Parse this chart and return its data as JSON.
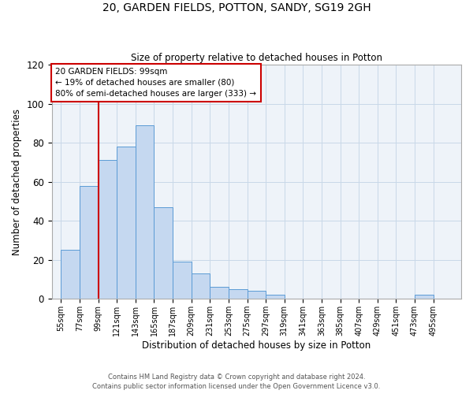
{
  "title_line1": "20, GARDEN FIELDS, POTTON, SANDY, SG19 2GH",
  "title_line2": "Size of property relative to detached houses in Potton",
  "xlabel": "Distribution of detached houses by size in Potton",
  "ylabel": "Number of detached properties",
  "bin_labels": [
    "55sqm",
    "77sqm",
    "99sqm",
    "121sqm",
    "143sqm",
    "165sqm",
    "187sqm",
    "209sqm",
    "231sqm",
    "253sqm",
    "275sqm",
    "297sqm",
    "319sqm",
    "341sqm",
    "363sqm",
    "385sqm",
    "407sqm",
    "429sqm",
    "451sqm",
    "473sqm",
    "495sqm"
  ],
  "bin_edges": [
    55,
    77,
    99,
    121,
    143,
    165,
    187,
    209,
    231,
    253,
    275,
    297,
    319,
    341,
    363,
    385,
    407,
    429,
    451,
    473,
    495
  ],
  "bar_heights": [
    25,
    58,
    71,
    78,
    89,
    47,
    19,
    13,
    6,
    5,
    4,
    2,
    0,
    0,
    0,
    0,
    0,
    0,
    0,
    2,
    0
  ],
  "bar_color": "#c5d8f0",
  "bar_edge_color": "#5b9bd5",
  "grid_color": "#c8d8e8",
  "background_color": "#eef3f9",
  "vline_x": 99,
  "vline_color": "#cc0000",
  "annotation_text_line1": "20 GARDEN FIELDS: 99sqm",
  "annotation_text_line2": "← 19% of detached houses are smaller (80)",
  "annotation_text_line3": "80% of semi-detached houses are larger (333) →",
  "annotation_box_color": "#cc0000",
  "ylim": [
    0,
    120
  ],
  "yticks": [
    0,
    20,
    40,
    60,
    80,
    100,
    120
  ],
  "footnote_line1": "Contains HM Land Registry data © Crown copyright and database right 2024.",
  "footnote_line2": "Contains public sector information licensed under the Open Government Licence v3.0."
}
